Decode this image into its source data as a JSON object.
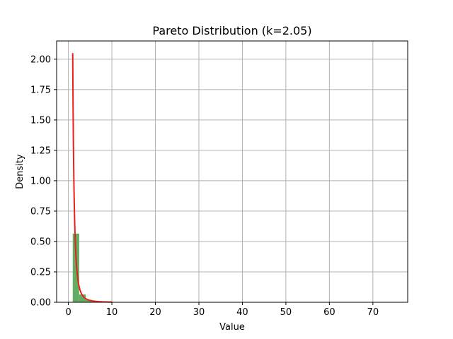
{
  "chart_data": {
    "type": "bar",
    "title": "Pareto Distribution (k=2.05)",
    "xlabel": "Value",
    "ylabel": "Density",
    "xlim": [
      -2.7,
      78.0
    ],
    "ylim": [
      0,
      2.15
    ],
    "xticks": [
      0,
      10,
      20,
      30,
      40,
      50,
      60,
      70
    ],
    "yticks": [
      0.0,
      0.25,
      0.5,
      0.75,
      1.0,
      1.25,
      1.5,
      1.75,
      2.0
    ],
    "ytick_labels": [
      "0.00",
      "0.25",
      "0.50",
      "0.75",
      "1.00",
      "1.25",
      "1.50",
      "1.75",
      "2.00"
    ],
    "grid": true,
    "legend": false,
    "histogram": {
      "bin_width": 1.49,
      "color": "#5ba85b",
      "bins": [
        {
          "x0": 1.0,
          "value": 0.565
        },
        {
          "x0": 2.49,
          "value": 0.065
        },
        {
          "x0": 3.98,
          "value": 0.02
        },
        {
          "x0": 5.47,
          "value": 0.008
        },
        {
          "x0": 6.96,
          "value": 0.004
        },
        {
          "x0": 8.45,
          "value": 0.002
        }
      ]
    },
    "pdf_curve": {
      "color": "#e8211c",
      "k": 2.05,
      "xm": 1.0,
      "x_range": [
        1.0,
        10.0
      ]
    }
  }
}
